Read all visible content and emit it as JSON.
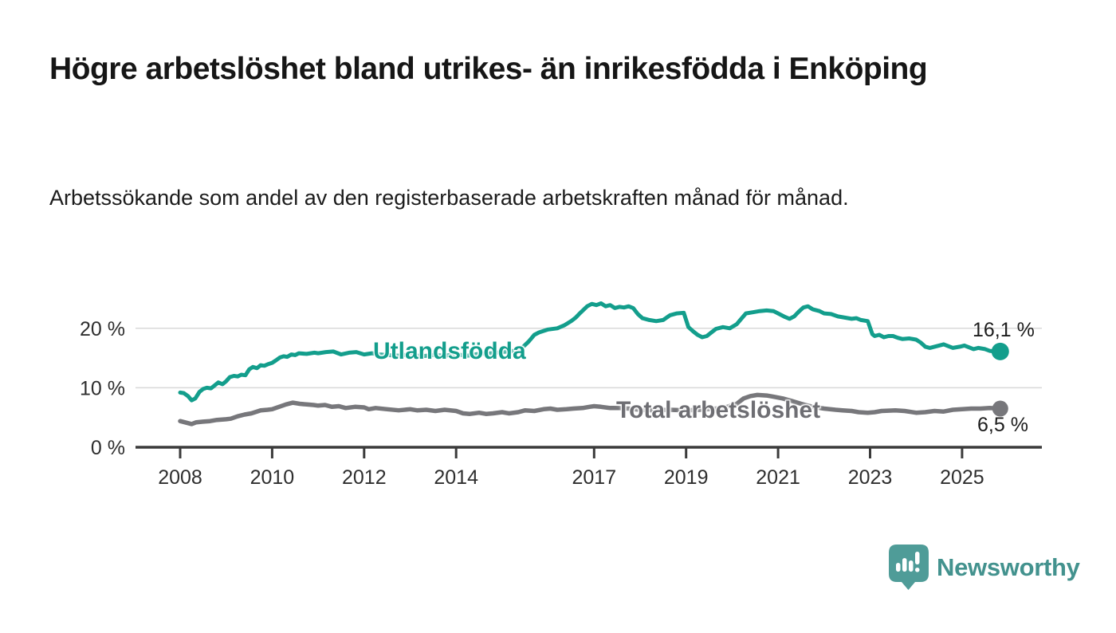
{
  "title": "Högre arbetslöshet bland utrikes- än inrikesfödda i Enköping",
  "subtitle": "Arbetssökande som andel av den registerbaserade arbetskraften månad för månad.",
  "logo": {
    "text": "Newsworthy",
    "icon": "speech-bubble-bar-chart-icon",
    "icon_color": "#4F9C98",
    "text_color": "#43928E"
  },
  "colors": {
    "utlandsfodda": "#139E8C",
    "total": "#77777B",
    "total_label": "#6E6E73",
    "axis": "#3B3B3B",
    "gridline": "#D8D8D8",
    "tick_text": "#2E2E2E",
    "value_text": "#1D1D1D"
  },
  "chart_data": {
    "type": "line",
    "title": "Högre arbetslöshet bland utrikes- än inrikesfödda i Enköping",
    "subtitle": "Arbetssökande som andel av den registerbaserade arbetskraften månad för månad.",
    "xlabel": "",
    "ylabel": "",
    "xlim": [
      2007.0,
      2026.75
    ],
    "ylim": [
      0,
      25.6
    ],
    "grid": "horizontal",
    "legend_position": "inline-labels",
    "unit": "%",
    "x_ticks": [
      {
        "value": 2008,
        "label": "2008"
      },
      {
        "value": 2010,
        "label": "2010"
      },
      {
        "value": 2012,
        "label": "2012"
      },
      {
        "value": 2014,
        "label": "2014"
      },
      {
        "value": 2017,
        "label": "2017"
      },
      {
        "value": 2019,
        "label": "2019"
      },
      {
        "value": 2021,
        "label": "2021"
      },
      {
        "value": 2023,
        "label": "2023"
      },
      {
        "value": 2025,
        "label": "2025"
      }
    ],
    "y_ticks": [
      {
        "value": 0,
        "label": "0 %"
      },
      {
        "value": 10,
        "label": "10 %"
      },
      {
        "value": 20,
        "label": "20 %"
      }
    ],
    "series": [
      {
        "name": "Utlandsfödda",
        "color": "#139E8C",
        "end_label": "16,1 %",
        "end_value": 16.1,
        "points": [
          [
            2008.0,
            9.2
          ],
          [
            2008.08,
            9.1
          ],
          [
            2008.17,
            8.6
          ],
          [
            2008.25,
            7.9
          ],
          [
            2008.33,
            8.2
          ],
          [
            2008.42,
            9.3
          ],
          [
            2008.5,
            9.8
          ],
          [
            2008.58,
            10.0
          ],
          [
            2008.67,
            9.9
          ],
          [
            2008.75,
            10.4
          ],
          [
            2008.83,
            10.9
          ],
          [
            2008.92,
            10.6
          ],
          [
            2009.0,
            11.1
          ],
          [
            2009.08,
            11.8
          ],
          [
            2009.17,
            12.0
          ],
          [
            2009.25,
            11.9
          ],
          [
            2009.33,
            12.2
          ],
          [
            2009.42,
            12.1
          ],
          [
            2009.5,
            13.1
          ],
          [
            2009.58,
            13.5
          ],
          [
            2009.67,
            13.3
          ],
          [
            2009.75,
            13.8
          ],
          [
            2009.83,
            13.7
          ],
          [
            2009.92,
            14.0
          ],
          [
            2010.0,
            14.2
          ],
          [
            2010.08,
            14.6
          ],
          [
            2010.17,
            15.1
          ],
          [
            2010.25,
            15.3
          ],
          [
            2010.33,
            15.2
          ],
          [
            2010.42,
            15.6
          ],
          [
            2010.5,
            15.5
          ],
          [
            2010.58,
            15.8
          ],
          [
            2010.75,
            15.7
          ],
          [
            2010.92,
            15.9
          ],
          [
            2011.0,
            15.8
          ],
          [
            2011.17,
            16.0
          ],
          [
            2011.33,
            16.1
          ],
          [
            2011.5,
            15.6
          ],
          [
            2011.67,
            15.9
          ],
          [
            2011.83,
            16.0
          ],
          [
            2012.0,
            15.6
          ],
          [
            2012.17,
            15.8
          ],
          [
            2012.33,
            15.6
          ],
          [
            2012.5,
            15.5
          ],
          [
            2012.75,
            15.4
          ],
          [
            2013.0,
            15.6
          ],
          [
            2013.25,
            15.3
          ],
          [
            2013.5,
            15.5
          ],
          [
            2013.75,
            15.4
          ],
          [
            2014.0,
            15.6
          ],
          [
            2014.25,
            15.4
          ],
          [
            2014.5,
            15.7
          ],
          [
            2014.75,
            15.8
          ],
          [
            2015.0,
            16.0
          ],
          [
            2015.25,
            16.2
          ],
          [
            2015.42,
            16.6
          ],
          [
            2015.58,
            17.8
          ],
          [
            2015.7,
            18.9
          ],
          [
            2015.8,
            19.3
          ],
          [
            2016.0,
            19.8
          ],
          [
            2016.2,
            20.0
          ],
          [
            2016.35,
            20.5
          ],
          [
            2016.5,
            21.2
          ],
          [
            2016.6,
            21.8
          ],
          [
            2016.7,
            22.6
          ],
          [
            2016.85,
            23.7
          ],
          [
            2016.95,
            24.1
          ],
          [
            2017.05,
            23.9
          ],
          [
            2017.15,
            24.2
          ],
          [
            2017.25,
            23.7
          ],
          [
            2017.35,
            23.9
          ],
          [
            2017.45,
            23.4
          ],
          [
            2017.55,
            23.6
          ],
          [
            2017.65,
            23.5
          ],
          [
            2017.75,
            23.7
          ],
          [
            2017.85,
            23.4
          ],
          [
            2017.95,
            22.4
          ],
          [
            2018.05,
            21.7
          ],
          [
            2018.2,
            21.4
          ],
          [
            2018.35,
            21.2
          ],
          [
            2018.5,
            21.4
          ],
          [
            2018.65,
            22.2
          ],
          [
            2018.8,
            22.5
          ],
          [
            2018.95,
            22.6
          ],
          [
            2019.05,
            20.2
          ],
          [
            2019.15,
            19.5
          ],
          [
            2019.25,
            18.9
          ],
          [
            2019.35,
            18.5
          ],
          [
            2019.45,
            18.7
          ],
          [
            2019.55,
            19.3
          ],
          [
            2019.65,
            19.9
          ],
          [
            2019.8,
            20.2
          ],
          [
            2019.95,
            20.0
          ],
          [
            2020.1,
            20.7
          ],
          [
            2020.2,
            21.6
          ],
          [
            2020.3,
            22.5
          ],
          [
            2020.45,
            22.7
          ],
          [
            2020.6,
            22.9
          ],
          [
            2020.75,
            23.0
          ],
          [
            2020.9,
            22.9
          ],
          [
            2021.0,
            22.5
          ],
          [
            2021.15,
            21.9
          ],
          [
            2021.25,
            21.6
          ],
          [
            2021.35,
            22.0
          ],
          [
            2021.45,
            22.8
          ],
          [
            2021.55,
            23.5
          ],
          [
            2021.65,
            23.7
          ],
          [
            2021.75,
            23.2
          ],
          [
            2021.9,
            22.9
          ],
          [
            2022.0,
            22.5
          ],
          [
            2022.15,
            22.4
          ],
          [
            2022.3,
            22.0
          ],
          [
            2022.45,
            21.8
          ],
          [
            2022.6,
            21.6
          ],
          [
            2022.7,
            21.7
          ],
          [
            2022.8,
            21.4
          ],
          [
            2022.95,
            21.2
          ],
          [
            2023.05,
            19.0
          ],
          [
            2023.1,
            18.7
          ],
          [
            2023.2,
            18.9
          ],
          [
            2023.3,
            18.5
          ],
          [
            2023.4,
            18.7
          ],
          [
            2023.5,
            18.7
          ],
          [
            2023.6,
            18.4
          ],
          [
            2023.7,
            18.2
          ],
          [
            2023.85,
            18.3
          ],
          [
            2024.0,
            18.1
          ],
          [
            2024.1,
            17.6
          ],
          [
            2024.2,
            16.9
          ],
          [
            2024.3,
            16.7
          ],
          [
            2024.4,
            16.9
          ],
          [
            2024.5,
            17.1
          ],
          [
            2024.6,
            17.3
          ],
          [
            2024.7,
            17.0
          ],
          [
            2024.8,
            16.7
          ],
          [
            2024.95,
            16.9
          ],
          [
            2025.05,
            17.1
          ],
          [
            2025.15,
            16.8
          ],
          [
            2025.25,
            16.5
          ],
          [
            2025.35,
            16.7
          ],
          [
            2025.5,
            16.5
          ],
          [
            2025.6,
            16.2
          ],
          [
            2025.72,
            16.1
          ],
          [
            2025.83,
            16.1
          ]
        ]
      },
      {
        "name": "Total arbetslöshet",
        "color": "#77777B",
        "end_label": "6,5 %",
        "end_value": 6.5,
        "points": [
          [
            2008.0,
            4.4
          ],
          [
            2008.1,
            4.2
          ],
          [
            2008.25,
            3.9
          ],
          [
            2008.35,
            4.2
          ],
          [
            2008.5,
            4.3
          ],
          [
            2008.65,
            4.4
          ],
          [
            2008.8,
            4.6
          ],
          [
            2009.0,
            4.7
          ],
          [
            2009.1,
            4.8
          ],
          [
            2009.25,
            5.2
          ],
          [
            2009.4,
            5.5
          ],
          [
            2009.55,
            5.7
          ],
          [
            2009.75,
            6.2
          ],
          [
            2009.9,
            6.3
          ],
          [
            2010.0,
            6.4
          ],
          [
            2010.15,
            6.8
          ],
          [
            2010.3,
            7.2
          ],
          [
            2010.45,
            7.5
          ],
          [
            2010.6,
            7.3
          ],
          [
            2010.75,
            7.2
          ],
          [
            2010.9,
            7.1
          ],
          [
            2011.0,
            7.0
          ],
          [
            2011.15,
            7.1
          ],
          [
            2011.3,
            6.8
          ],
          [
            2011.45,
            6.9
          ],
          [
            2011.6,
            6.6
          ],
          [
            2011.8,
            6.8
          ],
          [
            2012.0,
            6.7
          ],
          [
            2012.1,
            6.4
          ],
          [
            2012.25,
            6.6
          ],
          [
            2012.5,
            6.4
          ],
          [
            2012.75,
            6.2
          ],
          [
            2013.0,
            6.4
          ],
          [
            2013.15,
            6.2
          ],
          [
            2013.35,
            6.3
          ],
          [
            2013.55,
            6.1
          ],
          [
            2013.75,
            6.3
          ],
          [
            2014.0,
            6.1
          ],
          [
            2014.15,
            5.7
          ],
          [
            2014.3,
            5.6
          ],
          [
            2014.5,
            5.8
          ],
          [
            2014.65,
            5.6
          ],
          [
            2014.8,
            5.7
          ],
          [
            2015.0,
            5.9
          ],
          [
            2015.15,
            5.7
          ],
          [
            2015.35,
            5.9
          ],
          [
            2015.5,
            6.2
          ],
          [
            2015.7,
            6.1
          ],
          [
            2015.9,
            6.4
          ],
          [
            2016.05,
            6.5
          ],
          [
            2016.2,
            6.3
          ],
          [
            2016.4,
            6.4
          ],
          [
            2016.55,
            6.5
          ],
          [
            2016.75,
            6.6
          ],
          [
            2016.9,
            6.8
          ],
          [
            2017.0,
            6.9
          ],
          [
            2017.15,
            6.8
          ],
          [
            2017.35,
            6.6
          ],
          [
            2017.55,
            6.6
          ],
          [
            2017.75,
            6.5
          ],
          [
            2018.0,
            6.3
          ],
          [
            2018.3,
            6.2
          ],
          [
            2018.65,
            6.3
          ],
          [
            2019.0,
            6.2
          ],
          [
            2019.3,
            6.3
          ],
          [
            2019.65,
            6.5
          ],
          [
            2019.9,
            6.8
          ],
          [
            2020.1,
            7.3
          ],
          [
            2020.25,
            8.2
          ],
          [
            2020.4,
            8.6
          ],
          [
            2020.55,
            8.8
          ],
          [
            2020.75,
            8.7
          ],
          [
            2020.9,
            8.5
          ],
          [
            2021.1,
            8.2
          ],
          [
            2021.25,
            7.9
          ],
          [
            2021.5,
            7.3
          ],
          [
            2021.75,
            6.8
          ],
          [
            2022.0,
            6.5
          ],
          [
            2022.25,
            6.3
          ],
          [
            2022.4,
            6.2
          ],
          [
            2022.6,
            6.1
          ],
          [
            2022.75,
            5.9
          ],
          [
            2022.95,
            5.8
          ],
          [
            2023.1,
            5.9
          ],
          [
            2023.25,
            6.1
          ],
          [
            2023.55,
            6.2
          ],
          [
            2023.75,
            6.1
          ],
          [
            2024.0,
            5.8
          ],
          [
            2024.2,
            5.9
          ],
          [
            2024.4,
            6.1
          ],
          [
            2024.6,
            6.0
          ],
          [
            2024.8,
            6.3
          ],
          [
            2025.0,
            6.4
          ],
          [
            2025.2,
            6.5
          ],
          [
            2025.4,
            6.5
          ],
          [
            2025.6,
            6.6
          ],
          [
            2025.83,
            6.5
          ]
        ]
      }
    ]
  }
}
